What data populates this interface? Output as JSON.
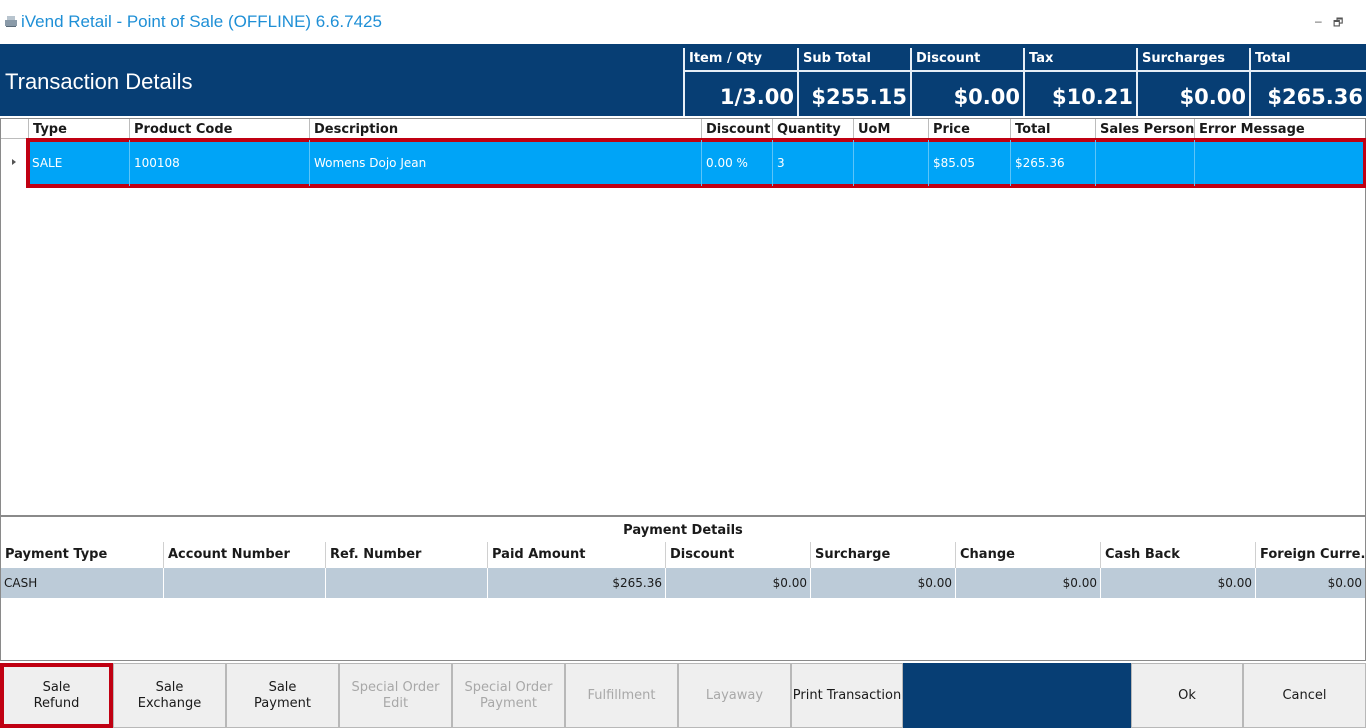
{
  "window": {
    "title": "iVend Retail - Point of Sale (OFFLINE) 6.6.7425",
    "minimize_glyph": "–",
    "restore_glyph": "🗗",
    "icon": "register-icon"
  },
  "header": {
    "title": "Transaction Details",
    "summary": [
      {
        "label": "Item / Qty",
        "value": "1/3.00"
      },
      {
        "label": "Sub Total",
        "value": "$255.15"
      },
      {
        "label": "Discount",
        "value": "$0.00"
      },
      {
        "label": "Tax",
        "value": "$10.21"
      },
      {
        "label": "Surcharges",
        "value": "$0.00"
      },
      {
        "label": "Total",
        "value": "$265.36"
      }
    ]
  },
  "grid": {
    "columns": [
      "Type",
      "Product Code",
      "Description",
      "Discount",
      "Quantity",
      "UoM",
      "Price",
      "Total",
      "Sales Person",
      "Error Message"
    ],
    "rows": [
      {
        "type": "SALE",
        "product_code": "100108",
        "description": "Womens Dojo Jean",
        "discount": "0.00 %",
        "quantity": "3",
        "uom": "",
        "price": "$85.05",
        "total": "$265.36",
        "sales_person": "",
        "error_message": ""
      }
    ]
  },
  "payment": {
    "title": "Payment Details",
    "columns": [
      "Payment Type",
      "Account Number",
      "Ref. Number",
      "Paid Amount",
      "Discount",
      "Surcharge",
      "Change",
      "Cash Back",
      "Foreign Curre..."
    ],
    "rows": [
      {
        "payment_type": "CASH",
        "account_number": "",
        "ref_number": "",
        "paid_amount": "$265.36",
        "discount": "$0.00",
        "surcharge": "$0.00",
        "change": "$0.00",
        "cash_back": "$0.00",
        "foreign_currency": "$0.00"
      }
    ]
  },
  "buttons": {
    "sale_refund": "Sale\nRefund",
    "sale_exchange": "Sale\nExchange",
    "sale_payment": "Sale\nPayment",
    "special_order_edit": "Special Order Edit",
    "special_order_payment": "Special Order\nPayment",
    "fulfillment": "Fulfillment",
    "layaway": "Layaway",
    "print_transaction": "Print Transaction",
    "ok": "Ok",
    "cancel": "Cancel"
  },
  "colors": {
    "header_bg": "#073e74",
    "selected_row": "#00a4f7",
    "highlight_border": "#c00012",
    "payment_row": "#bccbd8",
    "title_text": "#1e8fd6"
  }
}
